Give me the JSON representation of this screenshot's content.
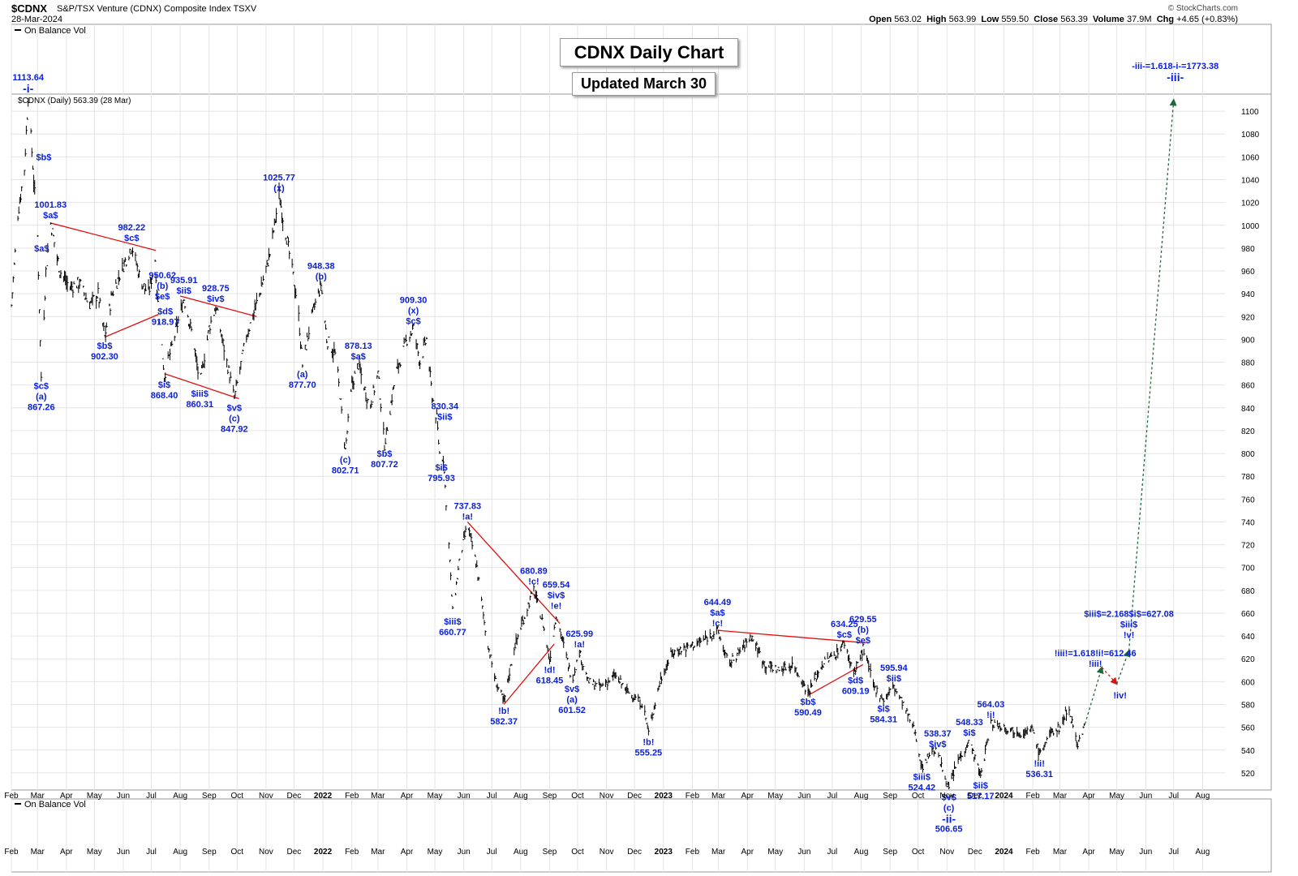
{
  "header": {
    "symbol": "$CDNX",
    "name": "S&P/TSX Venture (CDNX) Composite Index TSXV",
    "date": "28-Mar-2024",
    "credit": "© StockCharts.com",
    "open_label": "Open",
    "open": "563.02",
    "high_label": "High",
    "high": "563.99",
    "low_label": "Low",
    "low": "559.50",
    "close_label": "Close",
    "close": "563.39",
    "volume_label": "Volume",
    "volume": "37.9M",
    "chg_label": "Chg",
    "chg": "+4.65 (+0.83%)"
  },
  "panels": {
    "top_indicator": "On Balance Vol",
    "price_legend": "$CDNX (Daily) 563.39 (28 Mar)",
    "bottom_indicator": "On Balance Vol"
  },
  "title_box": {
    "title": "CDNX Daily Chart",
    "updated": "Updated March 30"
  },
  "colors": {
    "price": "#000000",
    "labels": "#0b1fd8",
    "trendlines": "#e01010",
    "projection_up": "#1e6b3a",
    "projection_down": "#e01010",
    "grid": "#e4e4e4"
  },
  "chart_data": {
    "type": "ohlc",
    "ylim": [
      505,
      1115
    ],
    "y_ticks": [
      520,
      540,
      560,
      580,
      600,
      620,
      640,
      660,
      680,
      700,
      720,
      740,
      760,
      780,
      800,
      820,
      840,
      860,
      880,
      900,
      920,
      940,
      960,
      980,
      1000,
      1020,
      1040,
      1060,
      1080,
      1100
    ],
    "x_ticks": [
      "Feb",
      "Mar",
      "Apr",
      "May",
      "Jun",
      "Jul",
      "Aug",
      "Sep",
      "Oct",
      "Nov",
      "Dec",
      "2022",
      "Feb",
      "Mar",
      "Apr",
      "May",
      "Jun",
      "Jul",
      "Aug",
      "Sep",
      "Oct",
      "Nov",
      "Dec",
      "2023",
      "Feb",
      "Mar",
      "Apr",
      "May",
      "Jun",
      "Jul",
      "Aug",
      "Sep",
      "Oct",
      "Nov",
      "Dec",
      "2024",
      "Feb",
      "Mar",
      "Apr",
      "May",
      "Jun",
      "Jul",
      "Aug"
    ],
    "x_tick_dates": [
      "2021-02-01",
      "2021-03-01",
      "2021-04-01",
      "2021-05-01",
      "2021-06-01",
      "2021-07-01",
      "2021-08-01",
      "2021-09-01",
      "2021-10-01",
      "2021-11-01",
      "2021-12-01",
      "2022-01-01",
      "2022-02-01",
      "2022-03-01",
      "2022-04-01",
      "2022-05-01",
      "2022-06-01",
      "2022-07-01",
      "2022-08-01",
      "2022-09-01",
      "2022-10-01",
      "2022-11-01",
      "2022-12-01",
      "2023-01-01",
      "2023-02-01",
      "2023-03-01",
      "2023-04-01",
      "2023-05-01",
      "2023-06-01",
      "2023-07-01",
      "2023-08-01",
      "2023-09-01",
      "2023-10-01",
      "2023-11-01",
      "2023-12-01",
      "2024-01-01",
      "2024-02-01",
      "2024-03-01",
      "2024-04-01",
      "2024-05-01",
      "2024-06-01",
      "2024-07-01",
      "2024-08-01"
    ],
    "x_range": [
      "2021-02-01",
      "2024-08-25"
    ],
    "path": [
      [
        "2021-02-01",
        930
      ],
      [
        "2021-02-08",
        1010
      ],
      [
        "2021-02-15",
        1050
      ],
      [
        "2021-02-19",
        1113.64
      ],
      [
        "2021-02-25",
        1040
      ],
      [
        "2021-03-01",
        990
      ],
      [
        "2021-03-05",
        867.26
      ],
      [
        "2021-03-10",
        960
      ],
      [
        "2021-03-15",
        1001.83
      ],
      [
        "2021-03-25",
        960
      ],
      [
        "2021-04-05",
        945
      ],
      [
        "2021-04-15",
        950
      ],
      [
        "2021-04-25",
        930
      ],
      [
        "2021-05-05",
        940
      ],
      [
        "2021-05-12",
        902.3
      ],
      [
        "2021-05-20",
        940
      ],
      [
        "2021-06-01",
        965
      ],
      [
        "2021-06-10",
        982.22
      ],
      [
        "2021-06-20",
        950
      ],
      [
        "2021-06-28",
        940
      ],
      [
        "2021-07-05",
        970
      ],
      [
        "2021-07-09",
        918.97
      ],
      [
        "2021-07-15",
        868.4
      ],
      [
        "2021-07-25",
        900
      ],
      [
        "2021-08-05",
        935.91
      ],
      [
        "2021-08-15",
        900
      ],
      [
        "2021-08-22",
        860.31
      ],
      [
        "2021-09-01",
        910
      ],
      [
        "2021-09-08",
        928.75
      ],
      [
        "2021-09-20",
        880
      ],
      [
        "2021-09-28",
        847.92
      ],
      [
        "2021-10-10",
        900
      ],
      [
        "2021-10-25",
        940
      ],
      [
        "2021-11-05",
        975
      ],
      [
        "2021-11-15",
        1025.77
      ],
      [
        "2021-11-25",
        980
      ],
      [
        "2021-12-05",
        930
      ],
      [
        "2021-12-10",
        877.7
      ],
      [
        "2021-12-20",
        920
      ],
      [
        "2021-12-30",
        948.38
      ],
      [
        "2022-01-05",
        900
      ],
      [
        "2022-01-15",
        885
      ],
      [
        "2022-01-25",
        802.71
      ],
      [
        "2022-02-01",
        860
      ],
      [
        "2022-02-08",
        878.13
      ],
      [
        "2022-02-20",
        840
      ],
      [
        "2022-03-01",
        870
      ],
      [
        "2022-03-08",
        807.72
      ],
      [
        "2022-03-20",
        870
      ],
      [
        "2022-04-01",
        900
      ],
      [
        "2022-04-08",
        909.3
      ],
      [
        "2022-04-15",
        880
      ],
      [
        "2022-04-22",
        900
      ],
      [
        "2022-04-28",
        850
      ],
      [
        "2022-05-03",
        830.34
      ],
      [
        "2022-05-06",
        800
      ],
      [
        "2022-05-10",
        795.93
      ],
      [
        "2022-05-16",
        720
      ],
      [
        "2022-05-20",
        660.77
      ],
      [
        "2022-05-28",
        710
      ],
      [
        "2022-06-05",
        737.83
      ],
      [
        "2022-06-15",
        700
      ],
      [
        "2022-06-25",
        640
      ],
      [
        "2022-07-05",
        600
      ],
      [
        "2022-07-14",
        582.37
      ],
      [
        "2022-07-25",
        630
      ],
      [
        "2022-08-08",
        665
      ],
      [
        "2022-08-15",
        680.89
      ],
      [
        "2022-08-25",
        650
      ],
      [
        "2022-09-01",
        618.45
      ],
      [
        "2022-09-08",
        659.54
      ],
      [
        "2022-09-18",
        625
      ],
      [
        "2022-09-25",
        601.52
      ],
      [
        "2022-10-03",
        625.99
      ],
      [
        "2022-10-12",
        600
      ],
      [
        "2022-10-25",
        595
      ],
      [
        "2022-11-10",
        605
      ],
      [
        "2022-11-25",
        590
      ],
      [
        "2022-12-10",
        580
      ],
      [
        "2022-12-16",
        555.25
      ],
      [
        "2022-12-28",
        600
      ],
      [
        "2023-01-10",
        625
      ],
      [
        "2023-01-25",
        630
      ],
      [
        "2023-02-10",
        635
      ],
      [
        "2023-02-28",
        644.49
      ],
      [
        "2023-03-12",
        615
      ],
      [
        "2023-03-22",
        625
      ],
      [
        "2023-04-05",
        640
      ],
      [
        "2023-04-20",
        615
      ],
      [
        "2023-05-05",
        610
      ],
      [
        "2023-05-20",
        615
      ],
      [
        "2023-06-05",
        590.49
      ],
      [
        "2023-06-20",
        615
      ],
      [
        "2023-07-05",
        625
      ],
      [
        "2023-07-14",
        634.25
      ],
      [
        "2023-07-22",
        612
      ],
      [
        "2023-07-26",
        609.19
      ],
      [
        "2023-08-03",
        629.55
      ],
      [
        "2023-08-15",
        595
      ],
      [
        "2023-08-25",
        584.31
      ],
      [
        "2023-09-05",
        595.94
      ],
      [
        "2023-09-15",
        580
      ],
      [
        "2023-09-28",
        555
      ],
      [
        "2023-10-05",
        524.42
      ],
      [
        "2023-10-15",
        540
      ],
      [
        "2023-10-22",
        538.37
      ],
      [
        "2023-10-28",
        520
      ],
      [
        "2023-11-03",
        506.65
      ],
      [
        "2023-11-12",
        530
      ],
      [
        "2023-11-25",
        548.33
      ],
      [
        "2023-12-02",
        530
      ],
      [
        "2023-12-07",
        517.17
      ],
      [
        "2023-12-18",
        564.03
      ],
      [
        "2024-01-02",
        560
      ],
      [
        "2024-01-20",
        555
      ],
      [
        "2024-02-01",
        558
      ],
      [
        "2024-02-08",
        536.31
      ],
      [
        "2024-02-20",
        555
      ],
      [
        "2024-03-01",
        560
      ],
      [
        "2024-03-10",
        578
      ],
      [
        "2024-03-20",
        545
      ],
      [
        "2024-03-28",
        563.39
      ]
    ],
    "wave_labels": [
      {
        "date": "2021-02-19",
        "value": 1113.64,
        "lines": [
          "1113.64",
          "-i-"
        ],
        "pos": "above"
      },
      {
        "date": "2021-02-24",
        "value": 1060,
        "lines": [
          "$b$"
        ],
        "pos": "right"
      },
      {
        "date": "2021-02-22",
        "value": 980,
        "lines": [
          "$a$"
        ],
        "pos": "right"
      },
      {
        "date": "2021-03-05",
        "value": 867.26,
        "lines": [
          "$c$",
          "(a)",
          "867.26"
        ],
        "pos": "below"
      },
      {
        "date": "2021-03-15",
        "value": 1001.83,
        "lines": [
          "1001.83",
          "$a$"
        ],
        "pos": "above"
      },
      {
        "date": "2021-05-12",
        "value": 902.3,
        "lines": [
          "$b$",
          "902.30"
        ],
        "pos": "below"
      },
      {
        "date": "2021-06-10",
        "value": 982.22,
        "lines": [
          "982.22",
          "$c$"
        ],
        "pos": "above"
      },
      {
        "date": "2021-07-06",
        "value": 950.62,
        "lines": [
          "950.62",
          "(b)",
          "$e$"
        ],
        "pos": "rightdown"
      },
      {
        "date": "2021-07-09",
        "value": 918.97,
        "lines": [
          "$d$",
          "918.97"
        ],
        "pos": "rightdown"
      },
      {
        "date": "2021-07-15",
        "value": 868.4,
        "lines": [
          "$i$",
          "868.40"
        ],
        "pos": "below"
      },
      {
        "date": "2021-08-05",
        "value": 935.91,
        "lines": [
          "935.91",
          "$ii$"
        ],
        "pos": "above"
      },
      {
        "date": "2021-08-22",
        "value": 860.31,
        "lines": [
          "$iii$",
          "860.31"
        ],
        "pos": "below"
      },
      {
        "date": "2021-09-08",
        "value": 928.75,
        "lines": [
          "928.75",
          "$iv$"
        ],
        "pos": "above"
      },
      {
        "date": "2021-09-28",
        "value": 847.92,
        "lines": [
          "$v$",
          "(c)",
          "847.92"
        ],
        "pos": "below"
      },
      {
        "date": "2021-11-15",
        "value": 1025.77,
        "lines": [
          "1025.77",
          "(x)"
        ],
        "pos": "above"
      },
      {
        "date": "2021-12-10",
        "value": 877.7,
        "lines": [
          "(a)",
          "877.70"
        ],
        "pos": "below"
      },
      {
        "date": "2021-12-30",
        "value": 948.38,
        "lines": [
          "948.38",
          "(b)"
        ],
        "pos": "above"
      },
      {
        "date": "2022-02-08",
        "value": 878.13,
        "lines": [
          "878.13",
          "$a$"
        ],
        "pos": "above"
      },
      {
        "date": "2022-01-25",
        "value": 802.71,
        "lines": [
          "(c)",
          "802.71"
        ],
        "pos": "below"
      },
      {
        "date": "2022-03-08",
        "value": 807.72,
        "lines": [
          "$b$",
          "807.72"
        ],
        "pos": "below"
      },
      {
        "date": "2022-04-08",
        "value": 909.3,
        "lines": [
          "909.30",
          "(x)",
          "$c$"
        ],
        "pos": "above"
      },
      {
        "date": "2022-05-03",
        "value": 830.34,
        "lines": [
          "830.34",
          "$ii$"
        ],
        "pos": "rightup"
      },
      {
        "date": "2022-05-08",
        "value": 795.93,
        "lines": [
          "$i$",
          "795.93"
        ],
        "pos": "below"
      },
      {
        "date": "2022-05-20",
        "value": 660.77,
        "lines": [
          "$iii$",
          "660.77"
        ],
        "pos": "below"
      },
      {
        "date": "2022-06-05",
        "value": 737.83,
        "lines": [
          "737.83",
          "!a!"
        ],
        "pos": "above"
      },
      {
        "date": "2022-07-14",
        "value": 582.37,
        "lines": [
          "!b!",
          "582.37"
        ],
        "pos": "below"
      },
      {
        "date": "2022-08-15",
        "value": 680.89,
        "lines": [
          "680.89",
          "!c!"
        ],
        "pos": "above"
      },
      {
        "date": "2022-09-08",
        "value": 659.54,
        "lines": [
          "659.54",
          "$iv$",
          "!e!"
        ],
        "pos": "above"
      },
      {
        "date": "2022-09-01",
        "value": 618.45,
        "lines": [
          "!d!",
          "618.45"
        ],
        "pos": "below"
      },
      {
        "date": "2022-09-25",
        "value": 601.52,
        "lines": [
          "$v$",
          "(a)",
          "601.52"
        ],
        "pos": "below"
      },
      {
        "date": "2022-10-03",
        "value": 625.99,
        "lines": [
          "625.99",
          "!a!"
        ],
        "pos": "above"
      },
      {
        "date": "2022-12-16",
        "value": 555.25,
        "lines": [
          "!b!",
          "555.25"
        ],
        "pos": "below"
      },
      {
        "date": "2023-02-28",
        "value": 644.49,
        "lines": [
          "644.49",
          "$a$",
          "!c!"
        ],
        "pos": "above"
      },
      {
        "date": "2023-06-05",
        "value": 590.49,
        "lines": [
          "$b$",
          "590.49"
        ],
        "pos": "below"
      },
      {
        "date": "2023-07-14",
        "value": 634.25,
        "lines": [
          "634.25",
          "$c$"
        ],
        "pos": "above"
      },
      {
        "date": "2023-08-03",
        "value": 629.55,
        "lines": [
          "629.55",
          "(b)",
          "$e$"
        ],
        "pos": "above"
      },
      {
        "date": "2023-07-26",
        "value": 609.19,
        "lines": [
          "$d$",
          "609.19"
        ],
        "pos": "below"
      },
      {
        "date": "2023-08-25",
        "value": 584.31,
        "lines": [
          "$i$",
          "584.31"
        ],
        "pos": "below"
      },
      {
        "date": "2023-09-05",
        "value": 595.94,
        "lines": [
          "595.94",
          "$ii$"
        ],
        "pos": "above"
      },
      {
        "date": "2023-10-05",
        "value": 524.42,
        "lines": [
          "$iii$",
          "524.42"
        ],
        "pos": "below"
      },
      {
        "date": "2023-10-22",
        "value": 538.37,
        "lines": [
          "538.37",
          "$iv$"
        ],
        "pos": "above"
      },
      {
        "date": "2023-11-03",
        "value": 506.65,
        "lines": [
          "$v$",
          "(c)",
          "-ii-",
          "506.65"
        ],
        "pos": "below"
      },
      {
        "date": "2023-11-25",
        "value": 548.33,
        "lines": [
          "548.33",
          "$i$"
        ],
        "pos": "above"
      },
      {
        "date": "2023-12-07",
        "value": 517.17,
        "lines": [
          "$ii$",
          "517.17"
        ],
        "pos": "below"
      },
      {
        "date": "2023-12-18",
        "value": 564.03,
        "lines": [
          "564.03",
          "!i!"
        ],
        "pos": "above"
      },
      {
        "date": "2024-02-08",
        "value": 536.31,
        "lines": [
          "!ii!",
          "536.31"
        ],
        "pos": "below"
      }
    ],
    "trendlines": [
      [
        [
          "2021-03-15",
          1002
        ],
        [
          "2021-07-06",
          978
        ]
      ],
      [
        [
          "2021-05-12",
          902
        ],
        [
          "2021-07-09",
          922
        ]
      ],
      [
        [
          "2021-07-15",
          870
        ],
        [
          "2021-10-03",
          848
        ]
      ],
      [
        [
          "2021-08-01",
          938
        ],
        [
          "2021-10-22",
          920
        ]
      ],
      [
        [
          "2022-06-05",
          740
        ],
        [
          "2022-09-12",
          651
        ]
      ],
      [
        [
          "2022-07-14",
          580
        ],
        [
          "2022-09-06",
          633
        ]
      ],
      [
        [
          "2023-02-28",
          645
        ],
        [
          "2023-08-06",
          634
        ]
      ],
      [
        [
          "2023-06-05",
          588
        ],
        [
          "2023-08-03",
          615
        ]
      ]
    ],
    "projection": {
      "points": [
        [
          "2024-03-28",
          563
        ],
        [
          "2024-04-15",
          612.46
        ],
        [
          "2024-05-01",
          598
        ],
        [
          "2024-05-14",
          627.08
        ],
        [
          "2024-07-01",
          1110
        ]
      ],
      "labels": [
        {
          "date": "2024-04-15",
          "value": 612.46,
          "lines": [
            "!iii!=1.618!i!=612.46",
            "!iii!"
          ]
        },
        {
          "date": "2024-05-01",
          "value": 598,
          "lines": [
            "!iv!"
          ]
        },
        {
          "date": "2024-05-14",
          "value": 627.08,
          "lines": [
            "$iii$=2.168$i$=627.08",
            "$iii$",
            "!v!"
          ]
        },
        {
          "date": "2024-07-01",
          "value": 1110,
          "lines": [
            "-iii-=1.618-i-=1773.38",
            "-iii-"
          ]
        }
      ]
    }
  }
}
